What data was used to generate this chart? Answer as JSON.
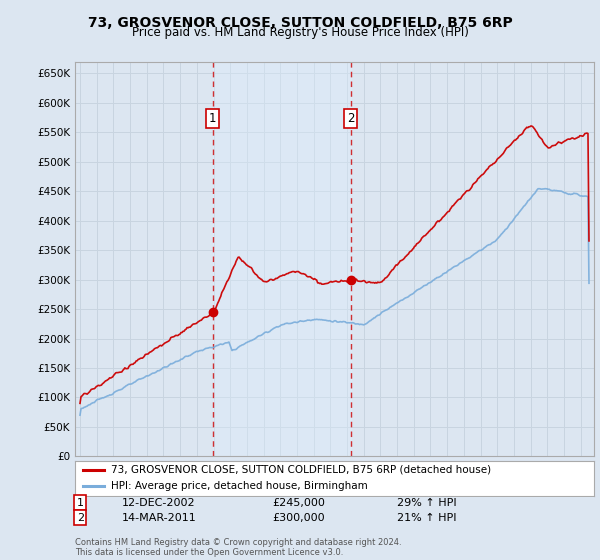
{
  "title": "73, GROSVENOR CLOSE, SUTTON COLDFIELD, B75 6RP",
  "subtitle": "Price paid vs. HM Land Registry's House Price Index (HPI)",
  "hpi_label": "HPI: Average price, detached house, Birmingham",
  "price_label": "73, GROSVENOR CLOSE, SUTTON COLDFIELD, B75 6RP (detached house)",
  "ylim": [
    0,
    670000
  ],
  "yticks": [
    0,
    50000,
    100000,
    150000,
    200000,
    250000,
    300000,
    350000,
    400000,
    450000,
    500000,
    550000,
    600000,
    650000
  ],
  "ytick_labels": [
    "£0",
    "£50K",
    "£100K",
    "£150K",
    "£200K",
    "£250K",
    "£300K",
    "£350K",
    "£400K",
    "£450K",
    "£500K",
    "£550K",
    "£600K",
    "£650K"
  ],
  "sale1_date": "12-DEC-2002",
  "sale1_price": 245000,
  "sale1_hpi_text": "29% ↑ HPI",
  "sale1_x": 2002.95,
  "sale2_date": "14-MAR-2011",
  "sale2_price": 300000,
  "sale2_hpi_text": "21% ↑ HPI",
  "sale2_x": 2011.21,
  "price_color": "#cc0000",
  "hpi_color": "#7aaddb",
  "vline_color": "#cc0000",
  "shade_color": "#ddeeff",
  "background_color": "#dce6f1",
  "grid_color": "#c8d4e0",
  "footnote": "Contains HM Land Registry data © Crown copyright and database right 2024.\nThis data is licensed under the Open Government Licence v3.0."
}
